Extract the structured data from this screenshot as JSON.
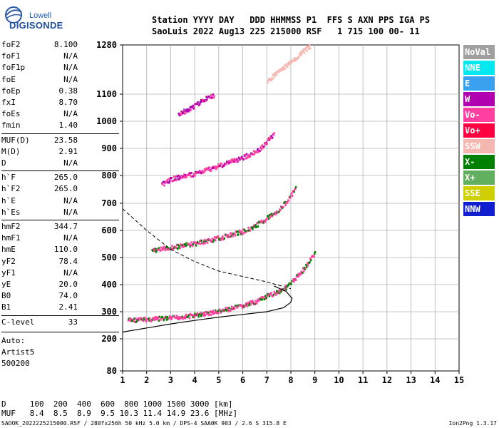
{
  "logo": {
    "brand": "Lowell",
    "product": "DIGISONDE"
  },
  "header": {
    "line1": "Station YYYY DAY   DDD HHMMSS P1  FFS S AXN PPS IGA PS",
    "line2": "SaoLuis 2022 Aug13 225 215000 RSF   1 715 100 00- 11"
  },
  "params": [
    {
      "label": "foF2",
      "value": "8.100"
    },
    {
      "label": "foF1",
      "value": "N/A"
    },
    {
      "label": "foF1p",
      "value": "N/A"
    },
    {
      "label": "foE",
      "value": "N/A"
    },
    {
      "label": "foEp",
      "value": "0.38"
    },
    {
      "label": "fxI",
      "value": "8.70"
    },
    {
      "label": "foEs",
      "value": "N/A"
    },
    {
      "label": "fmin",
      "value": "1.40"
    },
    {
      "label": "MUF(D)",
      "value": "23.58"
    },
    {
      "label": "M(D)",
      "value": "2.91"
    },
    {
      "label": "D",
      "value": "N/A"
    },
    {
      "label": "h`F",
      "value": "265.0"
    },
    {
      "label": "h`F2",
      "value": "265.0"
    },
    {
      "label": "h`E",
      "value": "N/A"
    },
    {
      "label": "h`Es",
      "value": "N/A"
    },
    {
      "label": "hmF2",
      "value": "344.7"
    },
    {
      "label": "hmF1",
      "value": "N/A"
    },
    {
      "label": "hmE",
      "value": "110.0"
    },
    {
      "label": "yF2",
      "value": "78.4"
    },
    {
      "label": "yF1",
      "value": "N/A"
    },
    {
      "label": "yE",
      "value": "20.0"
    },
    {
      "label": "B0",
      "value": "74.0"
    },
    {
      "label": "B1",
      "value": "2.41"
    },
    {
      "label": "C-level",
      "value": "33"
    }
  ],
  "auto_block": [
    "Auto:",
    "Artist5",
    "500200"
  ],
  "legend": [
    {
      "label": "NoVal",
      "color": "#a0a0a0"
    },
    {
      "label": "NNE",
      "color": "#00e8f0"
    },
    {
      "label": "E",
      "color": "#3aa0f0"
    },
    {
      "label": "W",
      "color": "#b000b0"
    },
    {
      "label": "Vo-",
      "color": "#ff40a0"
    },
    {
      "label": "Vo+",
      "color": "#ff0040"
    },
    {
      "label": "SSW",
      "color": "#f5b8b0"
    },
    {
      "label": "X-",
      "color": "#008000"
    },
    {
      "label": "X+",
      "color": "#60b060"
    },
    {
      "label": "SSE",
      "color": "#d0d000"
    },
    {
      "label": "NNW",
      "color": "#1020d0"
    }
  ],
  "muf_table": {
    "d_row": "D     100  200  400  600  800 1000 1500 3000 [km]",
    "muf_row": "MUF   8.4  8.5  8.9  9.5 10.3 11.4 14.9 23.6 [MHz]"
  },
  "footer": "SAOOK_2022225215000.RSF / 280fx256h 50 kHz 5.0 km / DPS-4 SAA0K 903 / 2.6 S 315.8 E",
  "version": "Ion2Png 1.3.17",
  "chart_data": {
    "type": "scatter",
    "xlim": [
      1,
      15
    ],
    "ylim": [
      80,
      1280
    ],
    "x_ticks": [
      1,
      2,
      3,
      4,
      5,
      6,
      7,
      8,
      9,
      10,
      11,
      12,
      13,
      14,
      15
    ],
    "y_ticks": [
      80,
      200,
      300,
      400,
      500,
      600,
      700,
      800,
      900,
      1000,
      1100,
      1280
    ],
    "grid": true,
    "height_axis_scale": "piecewise",
    "traces": [
      {
        "name": "o-trace F2",
        "color": "#ff40a0",
        "alt": "#008000",
        "points": [
          [
            1.2,
            272
          ],
          [
            2,
            275
          ],
          [
            3,
            280
          ],
          [
            4,
            290
          ],
          [
            5,
            305
          ],
          [
            6,
            325
          ],
          [
            6.5,
            340
          ],
          [
            7,
            360
          ],
          [
            7.5,
            380
          ],
          [
            7.8,
            395
          ],
          [
            8,
            410
          ],
          [
            8.3,
            440
          ],
          [
            8.6,
            470
          ],
          [
            8.9,
            510
          ],
          [
            9,
            520
          ]
        ]
      },
      {
        "name": "2nd hop",
        "color": "#ff40a0",
        "alt": "#008000",
        "points": [
          [
            2.2,
            530
          ],
          [
            3,
            540
          ],
          [
            4,
            555
          ],
          [
            5,
            575
          ],
          [
            6,
            600
          ],
          [
            6.5,
            620
          ],
          [
            7,
            650
          ],
          [
            7.5,
            680
          ],
          [
            7.9,
            720
          ],
          [
            8.2,
            760
          ]
        ]
      },
      {
        "name": "3rd hop",
        "color": "#ff40a0",
        "alt": "#b000b0",
        "points": [
          [
            2.6,
            770
          ],
          [
            3,
            790
          ],
          [
            4,
            810
          ],
          [
            5,
            840
          ],
          [
            6,
            870
          ],
          [
            6.7,
            900
          ],
          [
            7,
            930
          ],
          [
            7.3,
            960
          ]
        ]
      },
      {
        "name": "4th hop",
        "color": "#b000b0",
        "alt": "#ff40a0",
        "points": [
          [
            3.3,
            1030
          ],
          [
            3.8,
            1050
          ],
          [
            4.3,
            1080
          ],
          [
            4.8,
            1100
          ]
        ]
      },
      {
        "name": "5th hop",
        "color": "#f5b8b0",
        "alt": "#f5b8b0",
        "points": [
          [
            7,
            1150
          ],
          [
            7.5,
            1190
          ],
          [
            8,
            1220
          ],
          [
            8.5,
            1260
          ],
          [
            8.8,
            1280
          ]
        ]
      }
    ],
    "profile_curve": [
      [
        1,
        225
      ],
      [
        2,
        240
      ],
      [
        3,
        255
      ],
      [
        4,
        268
      ],
      [
        5,
        280
      ],
      [
        6,
        290
      ],
      [
        7,
        300
      ],
      [
        7.7,
        315
      ],
      [
        8,
        335
      ],
      [
        8.05,
        350
      ],
      [
        7.8,
        375
      ],
      [
        7.3,
        395
      ]
    ],
    "dashed_curve": [
      [
        1,
        680
      ],
      [
        2,
        600
      ],
      [
        3,
        530
      ],
      [
        4,
        485
      ],
      [
        5,
        450
      ],
      [
        6,
        430
      ],
      [
        7,
        410
      ],
      [
        8,
        385
      ]
    ]
  }
}
